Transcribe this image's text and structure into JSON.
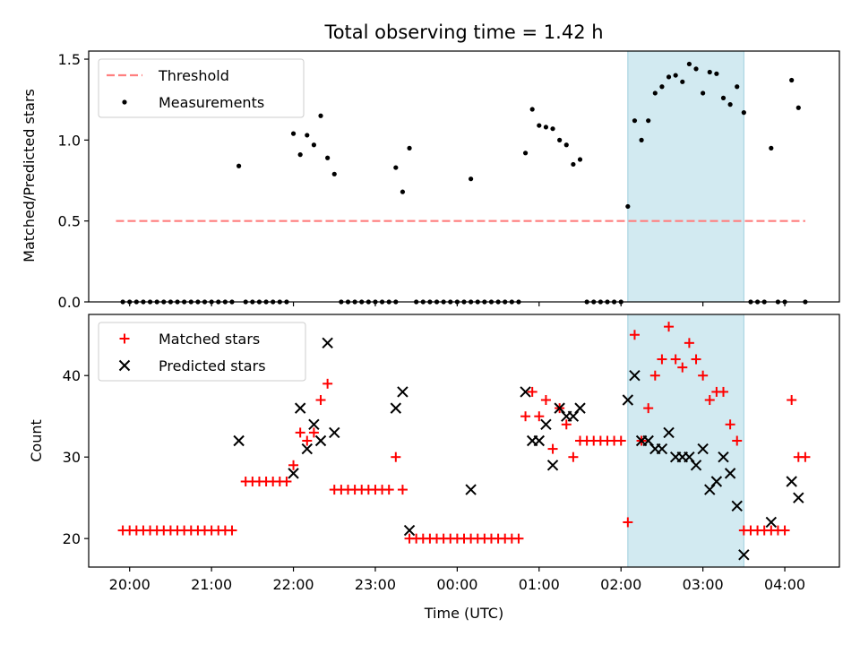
{
  "chart_data": [
    {
      "type": "scatter",
      "title": "Total observing time = 1.42 h",
      "ylabel": "Matched/Predicted stars",
      "xlabel": "",
      "ylim": [
        0,
        1.55
      ],
      "yticks": [
        0.0,
        0.5,
        1.0,
        1.5
      ],
      "ytick_labels": [
        "0.0",
        "0.5",
        "1.0",
        "1.5"
      ],
      "highlight_span": {
        "start": "02:05",
        "end": "03:30",
        "color": "#add8e6"
      },
      "legend": {
        "location": "upper left",
        "entries": [
          {
            "label": "Threshold",
            "style": "dashed-line",
            "color": "#ff7f7f"
          },
          {
            "label": "Measurements",
            "style": "dot",
            "color": "#000000"
          }
        ]
      },
      "threshold": {
        "name": "Threshold",
        "value": 0.5,
        "x_start": "19:50",
        "x_end": "04:15",
        "color": "#ff7f7f"
      },
      "series": [
        {
          "name": "Measurements",
          "marker": "dot",
          "color": "#000000",
          "points": [
            [
              "19:55",
              0
            ],
            [
              "20:00",
              0
            ],
            [
              "20:05",
              0
            ],
            [
              "20:10",
              0
            ],
            [
              "20:15",
              0
            ],
            [
              "20:20",
              0
            ],
            [
              "20:25",
              0
            ],
            [
              "20:30",
              0
            ],
            [
              "20:35",
              0
            ],
            [
              "20:40",
              0
            ],
            [
              "20:45",
              0
            ],
            [
              "20:50",
              0
            ],
            [
              "20:55",
              0
            ],
            [
              "21:00",
              0
            ],
            [
              "21:05",
              0
            ],
            [
              "21:10",
              0
            ],
            [
              "21:15",
              0
            ],
            [
              "21:20",
              0.84
            ],
            [
              "21:25",
              0
            ],
            [
              "21:30",
              0
            ],
            [
              "21:35",
              0
            ],
            [
              "21:40",
              0
            ],
            [
              "21:45",
              0
            ],
            [
              "21:50",
              0
            ],
            [
              "21:55",
              0
            ],
            [
              "22:00",
              1.04
            ],
            [
              "22:05",
              0.91
            ],
            [
              "22:10",
              1.03
            ],
            [
              "22:15",
              0.97
            ],
            [
              "22:20",
              1.15
            ],
            [
              "22:25",
              0.89
            ],
            [
              "22:30",
              0.79
            ],
            [
              "22:35",
              0
            ],
            [
              "22:40",
              0
            ],
            [
              "22:45",
              0
            ],
            [
              "22:50",
              0
            ],
            [
              "22:55",
              0
            ],
            [
              "23:00",
              0
            ],
            [
              "23:05",
              0
            ],
            [
              "23:10",
              0
            ],
            [
              "23:15",
              0
            ],
            [
              "23:15",
              0.83
            ],
            [
              "23:20",
              0.68
            ],
            [
              "23:25",
              0.95
            ],
            [
              "23:30",
              0
            ],
            [
              "23:35",
              0
            ],
            [
              "23:40",
              0
            ],
            [
              "23:45",
              0
            ],
            [
              "23:50",
              0
            ],
            [
              "23:55",
              0
            ],
            [
              "00:00",
              0
            ],
            [
              "00:05",
              0
            ],
            [
              "00:10",
              0
            ],
            [
              "00:10",
              0.76
            ],
            [
              "00:15",
              0
            ],
            [
              "00:20",
              0
            ],
            [
              "00:25",
              0
            ],
            [
              "00:30",
              0
            ],
            [
              "00:35",
              0
            ],
            [
              "00:40",
              0
            ],
            [
              "00:45",
              0
            ],
            [
              "00:50",
              0.92
            ],
            [
              "00:55",
              1.19
            ],
            [
              "01:00",
              1.09
            ],
            [
              "01:05",
              1.08
            ],
            [
              "01:10",
              1.07
            ],
            [
              "01:15",
              1.0
            ],
            [
              "01:20",
              0.97
            ],
            [
              "01:25",
              0.85
            ],
            [
              "01:30",
              0.88
            ],
            [
              "01:35",
              0
            ],
            [
              "01:40",
              0
            ],
            [
              "01:45",
              0
            ],
            [
              "01:50",
              0
            ],
            [
              "01:55",
              0
            ],
            [
              "02:00",
              0
            ],
            [
              "02:05",
              0.59
            ],
            [
              "02:10",
              1.12
            ],
            [
              "02:15",
              1.0
            ],
            [
              "02:20",
              1.12
            ],
            [
              "02:25",
              1.29
            ],
            [
              "02:30",
              1.33
            ],
            [
              "02:35",
              1.39
            ],
            [
              "02:40",
              1.4
            ],
            [
              "02:45",
              1.36
            ],
            [
              "02:50",
              1.47
            ],
            [
              "02:55",
              1.44
            ],
            [
              "03:00",
              1.29
            ],
            [
              "03:05",
              1.42
            ],
            [
              "03:10",
              1.41
            ],
            [
              "03:15",
              1.26
            ],
            [
              "03:20",
              1.22
            ],
            [
              "03:25",
              1.33
            ],
            [
              "03:30",
              1.17
            ],
            [
              "03:35",
              0
            ],
            [
              "03:40",
              0
            ],
            [
              "03:45",
              0
            ],
            [
              "03:50",
              0.95
            ],
            [
              "03:55",
              0
            ],
            [
              "04:00",
              0
            ],
            [
              "04:05",
              1.37
            ],
            [
              "04:10",
              1.2
            ],
            [
              "04:15",
              0
            ]
          ]
        }
      ]
    },
    {
      "type": "scatter",
      "title": "",
      "ylabel": "Count",
      "xlabel": "Time (UTC)",
      "ylim": [
        16.5,
        47.5
      ],
      "yticks": [
        20,
        30,
        40
      ],
      "ytick_labels": [
        "20",
        "30",
        "40"
      ],
      "xlim": [
        "19:30",
        "04:40"
      ],
      "xticks": [
        "20:00",
        "21:00",
        "22:00",
        "23:00",
        "00:00",
        "01:00",
        "02:00",
        "03:00",
        "04:00"
      ],
      "highlight_span": {
        "start": "02:05",
        "end": "03:30",
        "color": "#add8e6"
      },
      "legend": {
        "location": "upper left",
        "entries": [
          {
            "label": "Matched stars",
            "style": "plus",
            "color": "#ff0000"
          },
          {
            "label": "Predicted stars",
            "style": "x",
            "color": "#000000"
          }
        ]
      },
      "series": [
        {
          "name": "Matched stars",
          "marker": "plus",
          "color": "#ff0000",
          "points": [
            [
              "19:55",
              21
            ],
            [
              "20:00",
              21
            ],
            [
              "20:05",
              21
            ],
            [
              "20:10",
              21
            ],
            [
              "20:15",
              21
            ],
            [
              "20:20",
              21
            ],
            [
              "20:25",
              21
            ],
            [
              "20:30",
              21
            ],
            [
              "20:35",
              21
            ],
            [
              "20:40",
              21
            ],
            [
              "20:45",
              21
            ],
            [
              "20:50",
              21
            ],
            [
              "20:55",
              21
            ],
            [
              "21:00",
              21
            ],
            [
              "21:05",
              21
            ],
            [
              "21:10",
              21
            ],
            [
              "21:15",
              21
            ],
            [
              "21:25",
              27
            ],
            [
              "21:30",
              27
            ],
            [
              "21:35",
              27
            ],
            [
              "21:40",
              27
            ],
            [
              "21:45",
              27
            ],
            [
              "21:50",
              27
            ],
            [
              "21:55",
              27
            ],
            [
              "22:00",
              29
            ],
            [
              "22:05",
              33
            ],
            [
              "22:10",
              32
            ],
            [
              "22:15",
              33
            ],
            [
              "22:20",
              37
            ],
            [
              "22:25",
              39
            ],
            [
              "22:30",
              26
            ],
            [
              "22:35",
              26
            ],
            [
              "22:40",
              26
            ],
            [
              "22:45",
              26
            ],
            [
              "22:50",
              26
            ],
            [
              "22:55",
              26
            ],
            [
              "23:00",
              26
            ],
            [
              "23:05",
              26
            ],
            [
              "23:10",
              26
            ],
            [
              "23:15",
              30
            ],
            [
              "23:20",
              26
            ],
            [
              "23:25",
              20
            ],
            [
              "23:30",
              20
            ],
            [
              "23:35",
              20
            ],
            [
              "23:40",
              20
            ],
            [
              "23:45",
              20
            ],
            [
              "23:50",
              20
            ],
            [
              "23:55",
              20
            ],
            [
              "00:00",
              20
            ],
            [
              "00:05",
              20
            ],
            [
              "00:10",
              20
            ],
            [
              "00:15",
              20
            ],
            [
              "00:20",
              20
            ],
            [
              "00:25",
              20
            ],
            [
              "00:30",
              20
            ],
            [
              "00:35",
              20
            ],
            [
              "00:40",
              20
            ],
            [
              "00:45",
              20
            ],
            [
              "00:50",
              35
            ],
            [
              "00:55",
              38
            ],
            [
              "01:00",
              35
            ],
            [
              "01:05",
              37
            ],
            [
              "01:10",
              31
            ],
            [
              "01:15",
              36
            ],
            [
              "01:20",
              34
            ],
            [
              "01:25",
              30
            ],
            [
              "01:30",
              32
            ],
            [
              "01:35",
              32
            ],
            [
              "01:40",
              32
            ],
            [
              "01:45",
              32
            ],
            [
              "01:50",
              32
            ],
            [
              "01:55",
              32
            ],
            [
              "02:00",
              32
            ],
            [
              "02:05",
              22
            ],
            [
              "02:10",
              45
            ],
            [
              "02:15",
              32
            ],
            [
              "02:20",
              36
            ],
            [
              "02:25",
              40
            ],
            [
              "02:30",
              42
            ],
            [
              "02:35",
              46
            ],
            [
              "02:40",
              42
            ],
            [
              "02:45",
              41
            ],
            [
              "02:50",
              44
            ],
            [
              "02:55",
              42
            ],
            [
              "03:00",
              40
            ],
            [
              "03:05",
              37
            ],
            [
              "03:10",
              38
            ],
            [
              "03:15",
              38
            ],
            [
              "03:20",
              34
            ],
            [
              "03:25",
              32
            ],
            [
              "03:30",
              21
            ],
            [
              "03:35",
              21
            ],
            [
              "03:40",
              21
            ],
            [
              "03:45",
              21
            ],
            [
              "03:50",
              21
            ],
            [
              "03:55",
              21
            ],
            [
              "04:00",
              21
            ],
            [
              "04:05",
              37
            ],
            [
              "04:10",
              30
            ],
            [
              "04:15",
              30
            ]
          ]
        },
        {
          "name": "Predicted stars",
          "marker": "x",
          "color": "#000000",
          "points": [
            [
              "21:20",
              32
            ],
            [
              "22:00",
              28
            ],
            [
              "22:05",
              36
            ],
            [
              "22:10",
              31
            ],
            [
              "22:15",
              34
            ],
            [
              "22:20",
              32
            ],
            [
              "22:25",
              44
            ],
            [
              "22:30",
              33
            ],
            [
              "23:15",
              36
            ],
            [
              "23:20",
              38
            ],
            [
              "23:25",
              21
            ],
            [
              "00:10",
              26
            ],
            [
              "00:50",
              38
            ],
            [
              "00:55",
              32
            ],
            [
              "01:00",
              32
            ],
            [
              "01:05",
              34
            ],
            [
              "01:10",
              29
            ],
            [
              "01:15",
              36
            ],
            [
              "01:20",
              35
            ],
            [
              "01:25",
              35
            ],
            [
              "01:30",
              36
            ],
            [
              "02:05",
              37
            ],
            [
              "02:10",
              40
            ],
            [
              "02:15",
              32
            ],
            [
              "02:20",
              32
            ],
            [
              "02:25",
              31
            ],
            [
              "02:30",
              31
            ],
            [
              "02:35",
              33
            ],
            [
              "02:40",
              30
            ],
            [
              "02:45",
              30
            ],
            [
              "02:50",
              30
            ],
            [
              "02:55",
              29
            ],
            [
              "03:00",
              31
            ],
            [
              "03:05",
              26
            ],
            [
              "03:10",
              27
            ],
            [
              "03:15",
              30
            ],
            [
              "03:20",
              28
            ],
            [
              "03:25",
              24
            ],
            [
              "03:30",
              18
            ],
            [
              "03:50",
              22
            ],
            [
              "04:05",
              27
            ],
            [
              "04:10",
              25
            ]
          ]
        }
      ]
    }
  ]
}
